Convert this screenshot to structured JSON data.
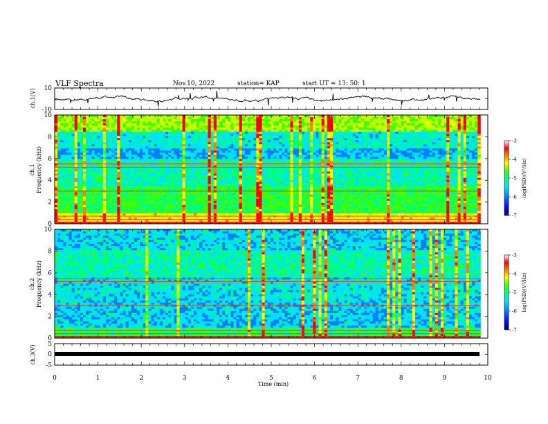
{
  "header": {
    "title": "VLF Spectra",
    "date": "Nov.10, 2022",
    "station": "station= KAP",
    "start": "start UT = 13: 50: 1"
  },
  "chart_data": [
    {
      "type": "line",
      "name": "ch1-waveform",
      "ylabel": "ch.1(V)",
      "ylim": [
        -10,
        10
      ],
      "yticks": [
        "10",
        "-10"
      ],
      "xlim": [
        0,
        10
      ],
      "trace_xmax": 9.83
    },
    {
      "type": "heatmap",
      "name": "ch1-spectrogram",
      "ylabel": "Frequency (kHz)",
      "channel_label": "ch.1",
      "ylim": [
        0,
        10
      ],
      "yticks": [
        "0",
        "2",
        "4",
        "6",
        "8",
        "10"
      ],
      "xlim": [
        0,
        10
      ],
      "colorbar": {
        "label": "log(PSD)(V²/Hz)",
        "range": [
          -7,
          -3
        ],
        "ticks": [
          "-3",
          "-4",
          "-5",
          "-6",
          "-7"
        ]
      }
    },
    {
      "type": "heatmap",
      "name": "ch2-spectrogram",
      "ylabel": "Frequency (kHz)",
      "channel_label": "ch.2",
      "ylim": [
        0,
        10
      ],
      "yticks": [
        "0",
        "2",
        "4",
        "6",
        "8",
        "10"
      ],
      "xlim": [
        0,
        10
      ],
      "colorbar": {
        "label": "log(PSD)(V²/Hz)",
        "range": [
          -7,
          -3
        ],
        "ticks": [
          "-3",
          "-4",
          "-5",
          "-6",
          "-7"
        ]
      }
    },
    {
      "type": "line",
      "name": "ch3-waveform",
      "ylabel": "ch.3(V)",
      "ylim": [
        -5,
        5
      ],
      "yticks": [
        "5",
        "0",
        "-5"
      ],
      "xlim": [
        0,
        10
      ]
    }
  ],
  "xaxis": {
    "label": "Time (min)",
    "ticks": [
      "0",
      "1",
      "2",
      "3",
      "4",
      "5",
      "6",
      "7",
      "8",
      "9",
      "10"
    ]
  },
  "colors": {
    "frame": "#000000",
    "background": "#ffffff",
    "colormap": [
      "#000080",
      "#0000ff",
      "#0080ff",
      "#00e0ff",
      "#00ff80",
      "#40ff00",
      "#c0ff00",
      "#ffff00",
      "#ff8000",
      "#ff0000",
      "#ffffff"
    ]
  }
}
